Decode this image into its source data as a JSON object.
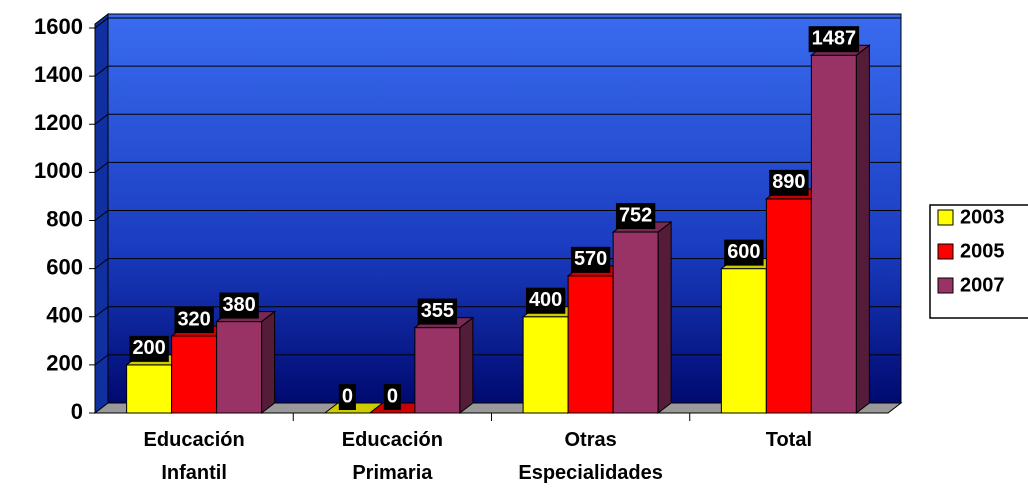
{
  "chart_data": {
    "type": "bar3d",
    "categories": [
      "Educación Infantil",
      "Educación Primaria",
      "Otras Especialidades",
      "Total"
    ],
    "series": [
      {
        "name": "2003",
        "color": "#ffff00",
        "values": [
          200,
          0,
          400,
          600
        ]
      },
      {
        "name": "2005",
        "color": "#ff0000",
        "values": [
          320,
          0,
          570,
          890
        ]
      },
      {
        "name": "2007",
        "color": "#993366",
        "values": [
          380,
          355,
          752,
          1487
        ]
      }
    ],
    "ylim": [
      0,
      1600
    ],
    "yticks": [
      0,
      200,
      400,
      600,
      800,
      1000,
      1200,
      1400,
      1600
    ],
    "grid": true,
    "legend": "right"
  }
}
